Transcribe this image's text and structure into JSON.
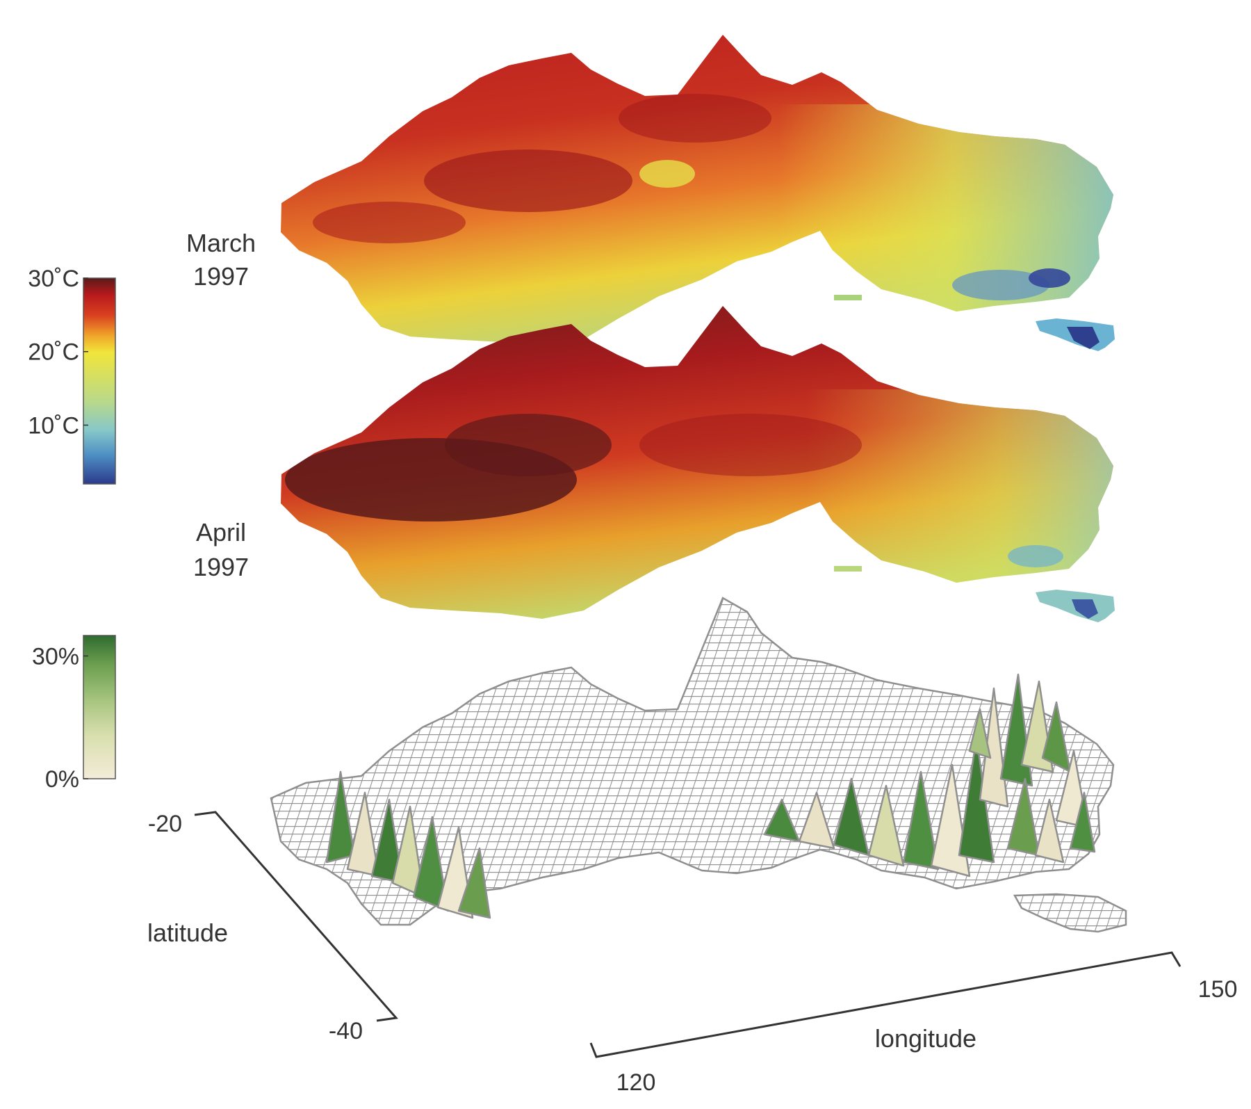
{
  "chart_data": {
    "type": "heatmap",
    "description_layers": [
      "temperature map",
      "temperature map",
      "3d surface"
    ],
    "layers": [
      {
        "label_line1": "March",
        "label_line2": "1997",
        "kind": "temperature-map"
      },
      {
        "label_line1": "April",
        "label_line2": "1997",
        "kind": "temperature-map"
      },
      {
        "label_line1": "",
        "label_line2": "",
        "kind": "surface-mesh"
      }
    ],
    "temperature_colorbar": {
      "ticks": [
        {
          "value": 30,
          "label": "30˚C"
        },
        {
          "value": 20,
          "label": "20˚C"
        },
        {
          "value": 10,
          "label": "10˚C"
        }
      ],
      "range": [
        2,
        30
      ],
      "colors": [
        "#2b3a8c",
        "#4d8fc4",
        "#86c7c8",
        "#b9d98a",
        "#f1e53a",
        "#f0a52a",
        "#d9401f",
        "#b7191c",
        "#5a1a1a"
      ]
    },
    "percent_colorbar": {
      "ticks": [
        {
          "value": 30,
          "label": "30%"
        },
        {
          "value": 0,
          "label": "0%"
        }
      ],
      "range": [
        0,
        35
      ],
      "colors": [
        "#f3ecd9",
        "#d9dfae",
        "#a6c47f",
        "#6b9e4f",
        "#2f6b2f"
      ]
    },
    "axes": {
      "latitude": {
        "label": "latitude",
        "ticks": [
          {
            "value": -20,
            "label": "-20"
          },
          {
            "value": -40,
            "label": "-40"
          }
        ]
      },
      "longitude": {
        "label": "longitude",
        "ticks": [
          {
            "value": 120,
            "label": "120"
          },
          {
            "value": 150,
            "label": "150"
          }
        ]
      }
    }
  }
}
